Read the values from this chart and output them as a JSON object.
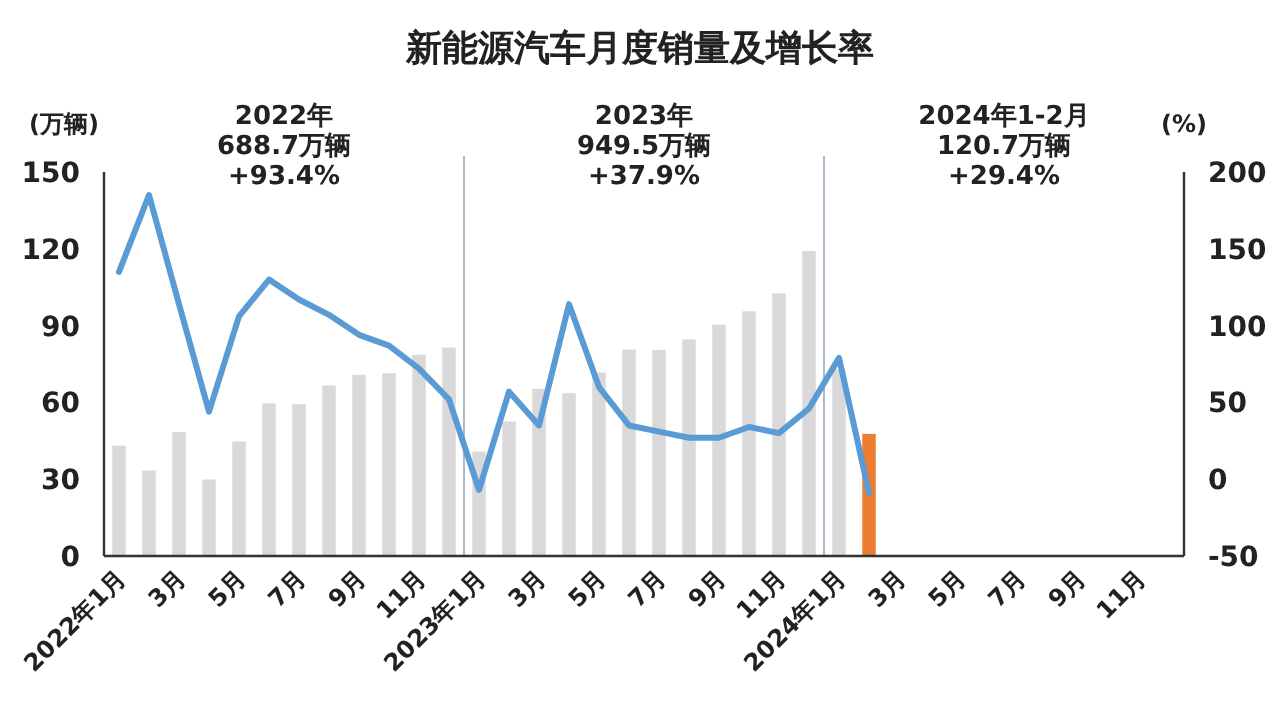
{
  "chart_data": {
    "type": "bar",
    "title": "新能源汽车月度销量及增长率",
    "ylabel": "(万辆)",
    "y2label": "(%)",
    "categories": [
      "2022年1月",
      null,
      "3月",
      null,
      "5月",
      null,
      "7月",
      null,
      "9月",
      null,
      "11月",
      null,
      "2023年1月",
      null,
      "3月",
      null,
      "5月",
      null,
      "7月",
      null,
      "9月",
      null,
      "11月",
      null,
      "2024年1月",
      null,
      "3月",
      null,
      "5月",
      null,
      "7月",
      null,
      "9月",
      null,
      "11月",
      null
    ],
    "series": [
      {
        "colors": [
          "#d9d9d9",
          "#d9d9d9",
          "#d9d9d9",
          "#d9d9d9",
          "#d9d9d9",
          "#d9d9d9",
          "#d9d9d9",
          "#d9d9d9",
          "#d9d9d9",
          "#d9d9d9",
          "#d9d9d9",
          "#d9d9d9",
          "#d9d9d9",
          "#d9d9d9",
          "#d9d9d9",
          "#d9d9d9",
          "#d9d9d9",
          "#d9d9d9",
          "#d9d9d9",
          "#d9d9d9",
          "#d9d9d9",
          "#d9d9d9",
          "#d9d9d9",
          "#d9d9d9",
          "#d9d9d9",
          "#ed7d31",
          null,
          null,
          null,
          null,
          null,
          null,
          null,
          null,
          null,
          null
        ],
        "values": [
          43.1,
          33.4,
          48.4,
          29.9,
          44.7,
          59.6,
          59.3,
          66.6,
          70.8,
          71.4,
          78.6,
          81.4,
          40.8,
          52.5,
          65.3,
          63.6,
          71.7,
          80.6,
          80.5,
          84.6,
          90.4,
          95.6,
          102.6,
          119.1,
          72.9,
          47.7,
          null,
          null,
          null,
          null,
          null,
          null,
          null,
          null,
          null,
          null
        ]
      },
      {
        "type": "line",
        "axis": "y2",
        "color": "#5b9bd5",
        "values": [
          135,
          185,
          114,
          44,
          106,
          130,
          117,
          107,
          94,
          87,
          72,
          52,
          -7,
          57,
          35,
          114,
          60,
          35,
          31,
          27,
          27,
          34,
          30,
          46,
          79,
          -9,
          null,
          null,
          null,
          null,
          null,
          null,
          null,
          null,
          null,
          null
        ]
      }
    ],
    "ylim": [
      0,
      150
    ],
    "yticks": [
      0,
      30,
      60,
      90,
      120,
      150
    ],
    "y2lim": [
      -50,
      200
    ],
    "y2ticks": [
      -50,
      0,
      50,
      100,
      150,
      200
    ],
    "annotations": [
      "2022年",
      "688.7万辆",
      "+93.4%",
      "2023年",
      "949.5万辆",
      "+37.9%",
      "2024年1-2月",
      "120.7万辆",
      "+29.4%"
    ],
    "grid": false
  }
}
